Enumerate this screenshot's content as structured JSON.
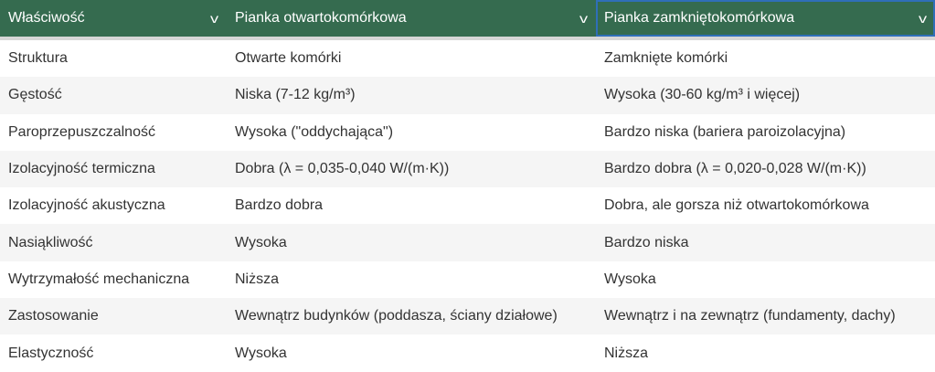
{
  "header": [
    {
      "label": "Właściwość",
      "icon": "chevron-down-icon"
    },
    {
      "label": "Pianka otwartokomórkowa",
      "icon": "chevron-down-icon"
    },
    {
      "label": "Pianka zamkniętokomórkowa",
      "icon": "chevron-down-icon"
    }
  ],
  "chevron": "⌄",
  "rows": [
    [
      "Struktura",
      "Otwarte komórki",
      "Zamknięte komórki"
    ],
    [
      "Gęstość",
      "Niska (7-12 kg/m³)",
      "Wysoka (30-60 kg/m³ i więcej)"
    ],
    [
      "Paroprzepuszczalność",
      "Wysoka (\"oddychająca\")",
      "Bardzo niska (bariera paroizolacyjna)"
    ],
    [
      "Izolacyjność termiczna",
      "Dobra (λ = 0,035-0,040 W/(m·K))",
      "Bardzo dobra (λ = 0,020-0,028 W/(m·K))"
    ],
    [
      "Izolacyjność akustyczna",
      "Bardzo dobra",
      "Dobra, ale gorsza niż otwartokomórkowa"
    ],
    [
      "Nasiąkliwość",
      "Wysoka",
      "Bardzo niska"
    ],
    [
      "Wytrzymałość mechaniczna",
      "Niższa",
      "Wysoka"
    ],
    [
      "Zastosowanie",
      "Wewnątrz budynków (poddasza, ściany działowe)",
      "Wewnątrz i na zewnątrz (fundamenty, dachy)"
    ],
    [
      "Elastyczność",
      "Wysoka",
      "Niższa"
    ]
  ],
  "colors": {
    "header_bg": "#356b4f",
    "focus_outline": "#2f6fb8",
    "stripe": "#f5f5f5"
  }
}
